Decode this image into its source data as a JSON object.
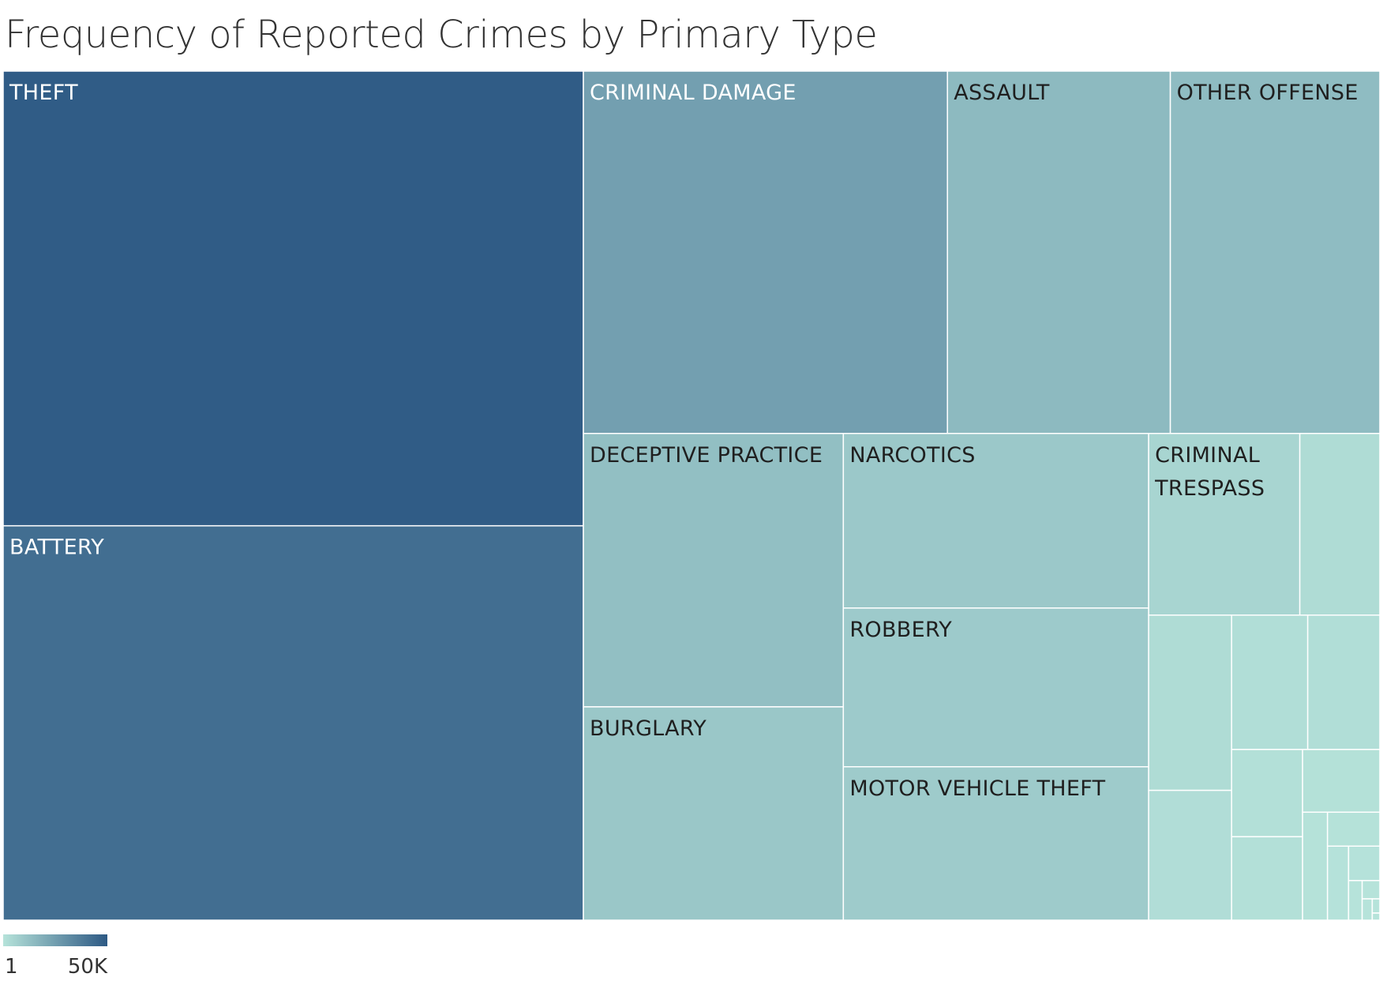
{
  "title": "Frequency of Reported Crimes by Primary Type",
  "chart_data": {
    "type": "treemap",
    "title": "Frequency of Reported Crimes by Primary Type",
    "color_scale": {
      "min": 1,
      "max": 50000,
      "min_label": "1",
      "max_label": "50K",
      "min_color": "#b6e3da",
      "max_color": "#2d5984"
    },
    "categories": [
      {
        "name": "THEFT",
        "label": "THEFT",
        "value": 49000
      },
      {
        "name": "BATTERY",
        "label": "BATTERY",
        "value": 42500
      },
      {
        "name": "CRIMINAL DAMAGE",
        "label": "CRIMINAL DAMAGE",
        "value": 24500
      },
      {
        "name": "ASSAULT",
        "label": "ASSAULT",
        "value": 15000
      },
      {
        "name": "OTHER OFFENSE",
        "label": "OTHER OFFENSE",
        "value": 14100
      },
      {
        "name": "DECEPTIVE PRACTICE",
        "label": "DECEPTIVE PRACTICE",
        "value": 13200
      },
      {
        "name": "BURGLARY",
        "label": "BURGLARY",
        "value": 10300
      },
      {
        "name": "NARCOTICS",
        "label": "NARCOTICS",
        "value": 9900
      },
      {
        "name": "ROBBERY",
        "label": "ROBBERY",
        "value": 9000
      },
      {
        "name": "MOTOR VEHICLE THEFT",
        "label": "MOTOR VEHICLE THEFT",
        "value": 8700
      },
      {
        "name": "CRIMINAL TRESPASS",
        "label": "CRIMINAL\nTRESPASS",
        "value": 5100
      },
      {
        "name": "unlabeled-1",
        "label": "",
        "value": 2700
      },
      {
        "name": "unlabeled-2",
        "label": "",
        "value": 2700
      },
      {
        "name": "unlabeled-3",
        "label": "",
        "value": 2000
      },
      {
        "name": "unlabeled-4",
        "label": "",
        "value": 1900
      },
      {
        "name": "unlabeled-5",
        "label": "",
        "value": 1800
      },
      {
        "name": "unlabeled-6",
        "label": "",
        "value": 1150
      },
      {
        "name": "unlabeled-7",
        "label": "",
        "value": 1100
      },
      {
        "name": "unlabeled-8",
        "label": "",
        "value": 900
      },
      {
        "name": "unlabeled-9",
        "label": "",
        "value": 500
      },
      {
        "name": "unlabeled-10",
        "label": "",
        "value": 330
      },
      {
        "name": "unlabeled-11",
        "label": "",
        "value": 290
      },
      {
        "name": "unlabeled-12",
        "label": "",
        "value": 200
      },
      {
        "name": "unlabeled-13",
        "label": "",
        "value": 100
      },
      {
        "name": "unlabeled-14",
        "label": "",
        "value": 60
      },
      {
        "name": "unlabeled-15",
        "label": "",
        "value": 40
      },
      {
        "name": "unlabeled-16",
        "label": "",
        "value": 20
      },
      {
        "name": "unlabeled-17",
        "label": "",
        "value": 10
      }
    ]
  }
}
